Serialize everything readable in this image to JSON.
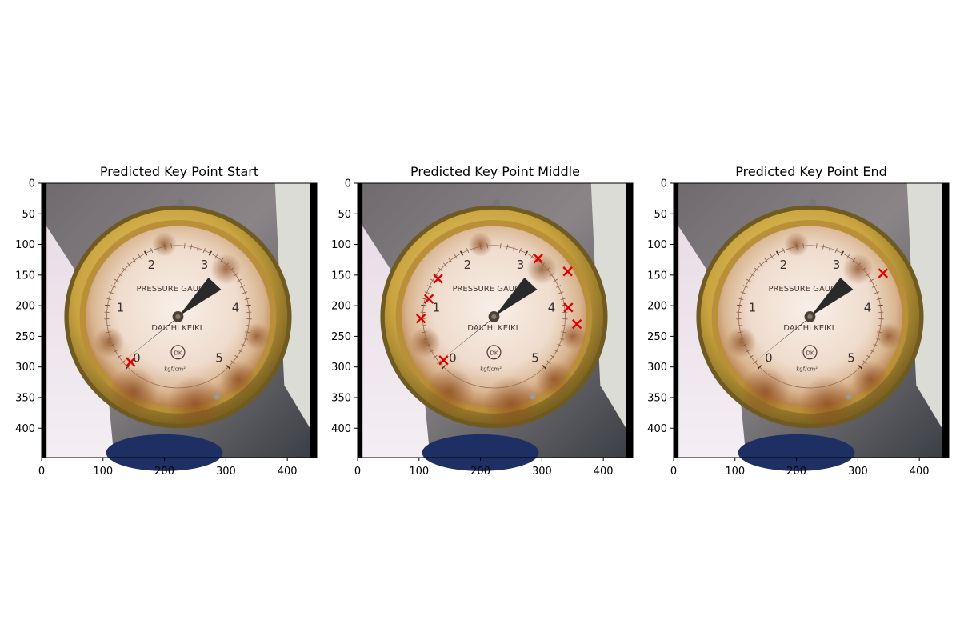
{
  "chart_data": [
    {
      "type": "scatter",
      "title": "Predicted Key Point Start",
      "x_ticks": [
        0,
        100,
        200,
        300,
        400
      ],
      "y_ticks": [
        0,
        50,
        100,
        150,
        200,
        250,
        300,
        350,
        400
      ],
      "xlim": [
        0,
        448
      ],
      "ylim": [
        448,
        0
      ],
      "marker": "x",
      "marker_color": "#e00000",
      "background": "pressure gauge photo",
      "points": [
        {
          "x": 145,
          "y": 292
        }
      ]
    },
    {
      "type": "scatter",
      "title": "Predicted Key Point Middle",
      "x_ticks": [
        0,
        100,
        200,
        300,
        400
      ],
      "y_ticks": [
        0,
        50,
        100,
        150,
        200,
        250,
        300,
        350,
        400
      ],
      "xlim": [
        0,
        448
      ],
      "ylim": [
        448,
        0
      ],
      "marker": "x",
      "marker_color": "#e00000",
      "background": "pressure gauge photo",
      "points": [
        {
          "x": 140,
          "y": 289
        },
        {
          "x": 103,
          "y": 221
        },
        {
          "x": 116,
          "y": 189
        },
        {
          "x": 131,
          "y": 156
        },
        {
          "x": 294,
          "y": 123
        },
        {
          "x": 342,
          "y": 144
        },
        {
          "x": 343,
          "y": 203
        },
        {
          "x": 357,
          "y": 230
        }
      ]
    },
    {
      "type": "scatter",
      "title": "Predicted Key Point End",
      "x_ticks": [
        0,
        100,
        200,
        300,
        400
      ],
      "y_ticks": [
        0,
        50,
        100,
        150,
        200,
        250,
        300,
        350,
        400
      ],
      "xlim": [
        0,
        448
      ],
      "ylim": [
        448,
        0
      ],
      "marker": "x",
      "marker_color": "#e00000",
      "background": "pressure gauge photo",
      "points": [
        {
          "x": 341,
          "y": 147
        }
      ]
    }
  ],
  "gauge_labels": {
    "dial_text_1": "PRESSURE GAUGE",
    "dial_text_2": "DAICHI KEIKI",
    "numerals": [
      "0",
      "1",
      "2",
      "3",
      "4",
      "5"
    ],
    "logo_text": "DK",
    "unit_text": "kgf/cm²"
  }
}
